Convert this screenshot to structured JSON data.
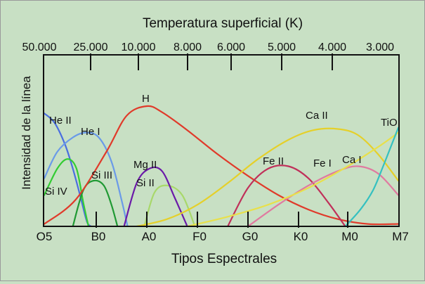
{
  "chart_data": {
    "type": "line",
    "top_axis": {
      "title": "Temperatura superficial (K)",
      "ticks": [
        {
          "label": "50.000",
          "pos": 0
        },
        {
          "label": "25.000",
          "pos": 1
        },
        {
          "label": "10.000",
          "pos": 2
        },
        {
          "label": "8.000",
          "pos": 3
        },
        {
          "label": "6.000",
          "pos": 4
        },
        {
          "label": "5.000",
          "pos": 5
        },
        {
          "label": "4.000",
          "pos": 6
        },
        {
          "label": "3.000",
          "pos": 7
        }
      ]
    },
    "bottom_axis": {
      "title": "Tipos Espectrales",
      "ticks": [
        {
          "label": "O5",
          "pos": 0
        },
        {
          "label": "B0",
          "pos": 1
        },
        {
          "label": "A0",
          "pos": 2
        },
        {
          "label": "F0",
          "pos": 3
        },
        {
          "label": "G0",
          "pos": 4
        },
        {
          "label": "K0",
          "pos": 5
        },
        {
          "label": "M0",
          "pos": 6
        },
        {
          "label": "M7",
          "pos": 7
        }
      ]
    },
    "y_axis": {
      "title": "Intensidad de la línea",
      "ylim": [
        0,
        1
      ],
      "ticks": false
    },
    "xlim": [
      0,
      7
    ],
    "grid": false,
    "series": [
      {
        "name": "He II",
        "color": "#4a6ee0",
        "x": [
          0,
          0.2,
          0.4,
          0.55,
          0.7,
          0.82,
          0.9
        ],
        "y": [
          0.94,
          0.86,
          0.68,
          0.48,
          0.24,
          0.04,
          0
        ]
      },
      {
        "name": "He I",
        "color": "#6a9ae8",
        "x": [
          0,
          0.25,
          0.55,
          0.8,
          1.05,
          1.3,
          1.5,
          1.62
        ],
        "y": [
          0.4,
          0.62,
          0.74,
          0.78,
          0.74,
          0.54,
          0.22,
          0
        ]
      },
      {
        "name": "Si IV",
        "color": "#33cc33",
        "x": [
          0,
          0.25,
          0.45,
          0.62,
          0.75,
          0.85
        ],
        "y": [
          0.26,
          0.48,
          0.56,
          0.48,
          0.2,
          0
        ]
      },
      {
        "name": "Si III",
        "color": "#1f9933",
        "x": [
          0.55,
          0.75,
          0.95,
          1.15,
          1.3,
          1.42
        ],
        "y": [
          0,
          0.3,
          0.38,
          0.34,
          0.18,
          0
        ]
      },
      {
        "name": "Si II",
        "color": "#a8d86a",
        "x": [
          1.95,
          2.15,
          2.4,
          2.7,
          2.95
        ],
        "y": [
          0,
          0.28,
          0.34,
          0.26,
          0
        ]
      },
      {
        "name": "Mg II",
        "color": "#6b1aa8",
        "x": [
          1.55,
          1.8,
          2.05,
          2.3,
          2.55,
          2.8
        ],
        "y": [
          0,
          0.36,
          0.48,
          0.46,
          0.24,
          0
        ]
      },
      {
        "name": "H",
        "color": "#e03a2a",
        "x": [
          0,
          0.6,
          1.2,
          1.6,
          2.0,
          2.3,
          2.8,
          3.4,
          4.0,
          4.6,
          5.2,
          5.8,
          6.4,
          7.0
        ],
        "y": [
          0.02,
          0.22,
          0.62,
          0.92,
          1.0,
          0.95,
          0.8,
          0.6,
          0.42,
          0.26,
          0.14,
          0.06,
          0.02,
          0.02
        ]
      },
      {
        "name": "Ca II",
        "color": "#e5d02a",
        "x": [
          1.8,
          2.4,
          3.0,
          3.6,
          4.2,
          4.8,
          5.3,
          5.8,
          6.2,
          6.6,
          7.0
        ],
        "y": [
          0,
          0.06,
          0.18,
          0.36,
          0.56,
          0.72,
          0.8,
          0.81,
          0.76,
          0.6,
          0.38
        ]
      },
      {
        "name": "Fe II",
        "color": "#c0305a",
        "x": [
          3.6,
          4.0,
          4.4,
          4.8,
          5.2,
          5.6,
          5.95
        ],
        "y": [
          0,
          0.32,
          0.48,
          0.5,
          0.4,
          0.2,
          0
        ]
      },
      {
        "name": "Fe I",
        "color": "#e07aa0",
        "x": [
          4.0,
          4.6,
          5.2,
          5.8,
          6.2,
          6.6,
          7.0
        ],
        "y": [
          0,
          0.18,
          0.34,
          0.46,
          0.5,
          0.44,
          0.26
        ]
      },
      {
        "name": "Ca I",
        "color": "#e8e04a",
        "x": [
          2.8,
          3.6,
          4.4,
          5.2,
          6.0,
          6.6,
          7.0
        ],
        "y": [
          0,
          0.08,
          0.18,
          0.32,
          0.5,
          0.66,
          0.78
        ]
      },
      {
        "name": "TiO",
        "color": "#34c0c0",
        "x": [
          5.95,
          6.25,
          6.5,
          6.7,
          6.85,
          7.0
        ],
        "y": [
          0,
          0.14,
          0.3,
          0.5,
          0.66,
          0.82
        ]
      }
    ]
  }
}
